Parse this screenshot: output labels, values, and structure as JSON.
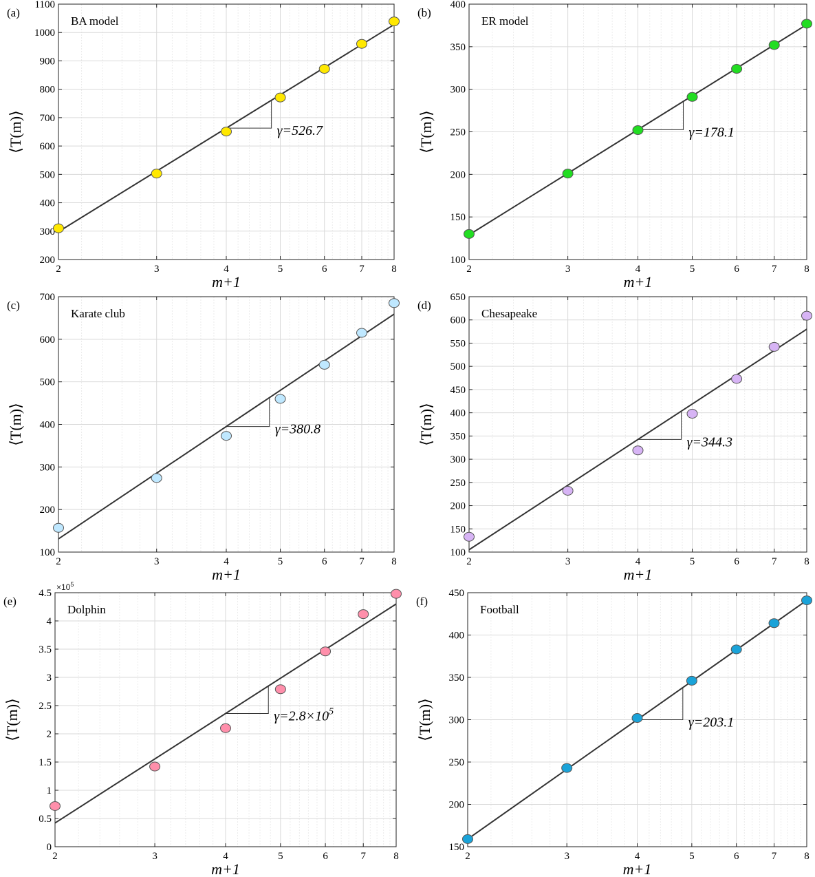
{
  "x_axis_label": "m+1",
  "y_axis_label": "⟨T(m)⟩",
  "chart_data": [
    {
      "panel": "(a)",
      "title": "BA model",
      "type": "scatter",
      "x_scale": "log",
      "x_ticks": [
        2,
        3,
        4,
        5,
        6,
        7,
        8
      ],
      "xlim": [
        2,
        8
      ],
      "ylim": [
        200,
        1100
      ],
      "y_ticks": [
        200,
        300,
        400,
        500,
        600,
        700,
        800,
        900,
        1000,
        1100
      ],
      "y_tick_labels": [
        "200",
        "300",
        "400",
        "500",
        "600",
        "700",
        "800",
        "900",
        "1000",
        "1100"
      ],
      "x": [
        2,
        3,
        4,
        5,
        6,
        7,
        8
      ],
      "values": [
        310,
        503,
        651,
        771,
        872,
        960,
        1039
      ],
      "fit_line": {
        "x": [
          2,
          8
        ],
        "y": [
          298,
          1028
        ]
      },
      "slope_annotation": {
        "label": "γ=526.7",
        "x_from": 4,
        "x_to": 4.82
      },
      "marker_color": "#ffe800",
      "grid": true
    },
    {
      "panel": "(b)",
      "title": "ER model",
      "type": "scatter",
      "x_scale": "log",
      "x_ticks": [
        2,
        3,
        4,
        5,
        6,
        7,
        8
      ],
      "xlim": [
        2,
        8
      ],
      "ylim": [
        100,
        400
      ],
      "y_ticks": [
        100,
        150,
        200,
        250,
        300,
        350,
        400
      ],
      "y_tick_labels": [
        "100",
        "150",
        "200",
        "250",
        "300",
        "350",
        "400"
      ],
      "x": [
        2,
        3,
        4,
        5,
        6,
        7,
        8
      ],
      "values": [
        130,
        201,
        252,
        291,
        324,
        352,
        377
      ],
      "fit_line": {
        "x": [
          2,
          8
        ],
        "y": [
          129,
          376
        ]
      },
      "slope_annotation": {
        "label": "γ=178.1",
        "x_from": 4,
        "x_to": 4.82
      },
      "marker_color": "#22dd22",
      "grid": true
    },
    {
      "panel": "(c)",
      "title": "Karate club",
      "type": "scatter",
      "x_scale": "log",
      "x_ticks": [
        2,
        3,
        4,
        5,
        6,
        7,
        8
      ],
      "xlim": [
        2,
        8
      ],
      "ylim": [
        100,
        700
      ],
      "y_ticks": [
        100,
        200,
        300,
        400,
        500,
        600,
        700
      ],
      "y_tick_labels": [
        "100",
        "200",
        "300",
        "400",
        "500",
        "600",
        "700"
      ],
      "x": [
        2,
        3,
        4,
        5,
        6,
        7,
        8
      ],
      "values": [
        157,
        274,
        373,
        460,
        540,
        615,
        685
      ],
      "fit_line": {
        "x": [
          2,
          8
        ],
        "y": [
          131,
          659
        ]
      },
      "slope_annotation": {
        "label": "γ=380.8",
        "x_from": 4,
        "x_to": 4.78
      },
      "marker_color": "#bfe8ff",
      "grid": true
    },
    {
      "panel": "(d)",
      "title": "Chesapeake",
      "type": "scatter",
      "x_scale": "log",
      "x_ticks": [
        2,
        3,
        4,
        5,
        6,
        7,
        8
      ],
      "xlim": [
        2,
        8
      ],
      "ylim": [
        100,
        650
      ],
      "y_ticks": [
        100,
        150,
        200,
        250,
        300,
        350,
        400,
        450,
        500,
        550,
        600,
        650
      ],
      "y_tick_labels": [
        "100",
        "150",
        "200",
        "250",
        "300",
        "350",
        "400",
        "450",
        "500",
        "550",
        "600",
        "650"
      ],
      "x": [
        2,
        3,
        4,
        5,
        6,
        7,
        8
      ],
      "values": [
        133,
        232,
        319,
        398,
        473,
        542,
        609
      ],
      "fit_line": {
        "x": [
          2,
          8
        ],
        "y": [
          105,
          580
        ]
      },
      "slope_annotation": {
        "label": "γ=344.3",
        "x_from": 4,
        "x_to": 4.78
      },
      "marker_color": "#d7b4f5",
      "grid": true
    },
    {
      "panel": "(e)",
      "title": "Dolphin",
      "type": "scatter",
      "x_scale": "log",
      "x_ticks": [
        2,
        3,
        4,
        5,
        6,
        7,
        8
      ],
      "xlim": [
        2,
        8
      ],
      "ylim": [
        0,
        4.5
      ],
      "y_ticks": [
        0,
        0.5,
        1,
        1.5,
        2,
        2.5,
        3,
        3.5,
        4,
        4.5
      ],
      "y_tick_labels": [
        "0",
        "0.5",
        "1",
        "1.5",
        "2",
        "2.5",
        "3",
        "3.5",
        "4",
        "4.5"
      ],
      "y_multiplier": "×10",
      "y_multiplier_exp": "5",
      "x": [
        2,
        3,
        4,
        5,
        6,
        7,
        8
      ],
      "values": [
        0.72,
        1.42,
        2.1,
        2.79,
        3.46,
        4.12,
        4.48
      ],
      "fit_line": {
        "x": [
          2,
          8
        ],
        "y": [
          0.42,
          4.3
        ]
      },
      "slope_annotation": {
        "label": "γ=2.8×10",
        "label_exp": "5",
        "x_from": 4,
        "x_to": 4.76
      },
      "marker_color": "#ff8fab",
      "grid": true
    },
    {
      "panel": "(f)",
      "title": "Football",
      "type": "scatter",
      "x_scale": "log",
      "x_ticks": [
        2,
        3,
        4,
        5,
        6,
        7,
        8
      ],
      "xlim": [
        2,
        8
      ],
      "ylim": [
        150,
        450
      ],
      "y_ticks": [
        150,
        200,
        250,
        300,
        350,
        400,
        450
      ],
      "y_tick_labels": [
        "150",
        "200",
        "250",
        "300",
        "350",
        "400",
        "450"
      ],
      "x": [
        2,
        3,
        4,
        5,
        6,
        7,
        8
      ],
      "values": [
        159,
        243,
        302,
        346,
        383,
        414,
        441
      ],
      "fit_line": {
        "x": [
          2,
          8
        ],
        "y": [
          159,
          441
        ]
      },
      "slope_annotation": {
        "label": "γ=203.1",
        "x_from": 4,
        "x_to": 4.82
      },
      "marker_color": "#1aa3d9",
      "grid": true
    }
  ]
}
